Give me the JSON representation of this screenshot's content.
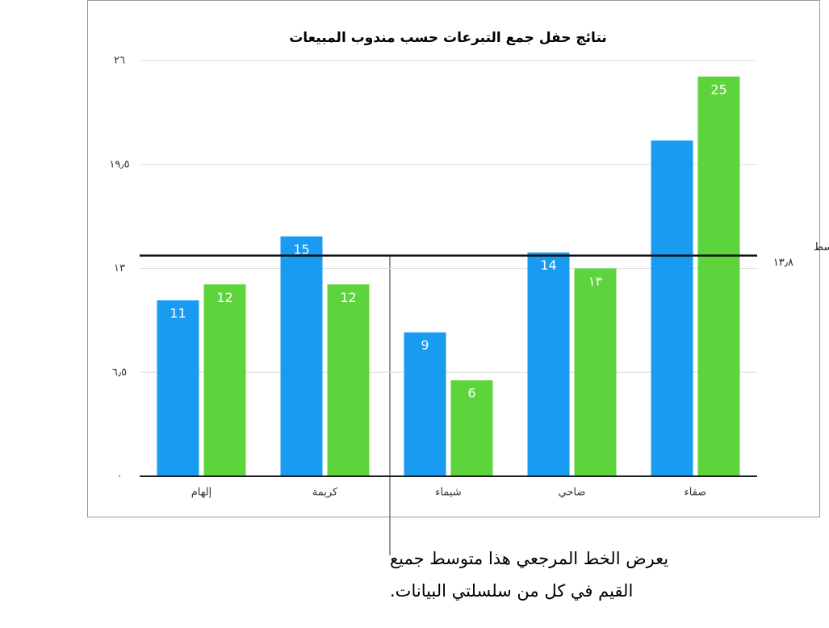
{
  "chart_data": {
    "type": "bar",
    "title": "نتائج حفل جمع التبرعات حسب مندوب المبيعات",
    "categories": [
      "إلهام",
      "كريمة",
      "شيماء",
      "ضاحي",
      "صفاء"
    ],
    "series": [
      {
        "color": "#1a9bf2",
        "values": [
          11,
          15,
          9,
          14,
          21
        ],
        "value_labels": [
          "11",
          "15",
          "9",
          "14",
          null
        ]
      },
      {
        "color": "#5dd43c",
        "values": [
          12,
          12,
          6,
          13,
          25
        ],
        "value_labels": [
          "12",
          "12",
          "6",
          "١٣",
          "25"
        ]
      }
    ],
    "ylim": [
      0,
      26
    ],
    "yticks": [
      {
        "value": 0,
        "label": "٠"
      },
      {
        "value": 6.5,
        "label": "٦٫٥"
      },
      {
        "value": 13,
        "label": "١٣"
      },
      {
        "value": 19.5,
        "label": "١٩٫٥"
      },
      {
        "value": 26,
        "label": "٢٦"
      }
    ],
    "grid": true,
    "reference_line": {
      "label": "المتوسط",
      "value": 13.8,
      "value_label": "١٣٫٨"
    }
  },
  "callout": {
    "lines": [
      "يعرض الخط المرجعي هذا متوسط جميع",
      "القيم في كل من سلسلتي البيانات."
    ]
  }
}
